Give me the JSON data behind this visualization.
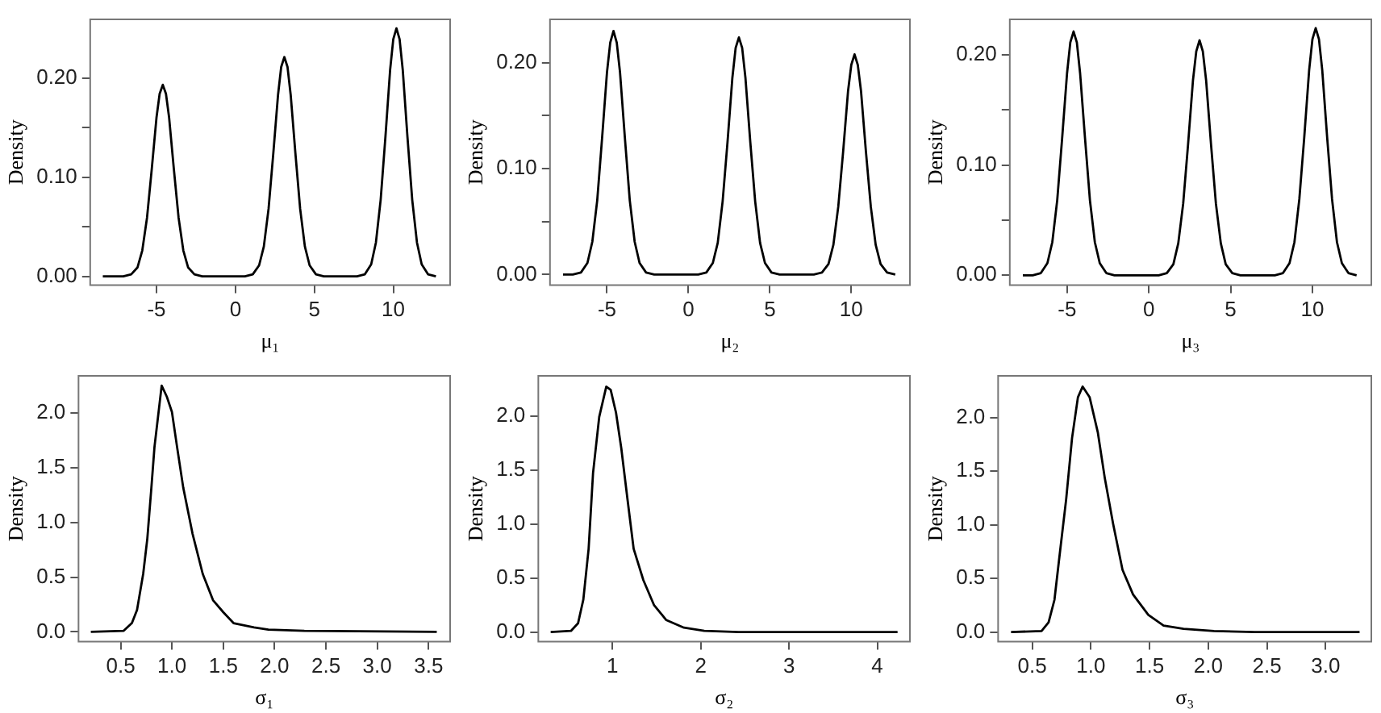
{
  "chart_data": [
    {
      "type": "line",
      "xlabel": "μ₁",
      "ylabel": "Density",
      "xlim": [
        -9.2,
        13.6
      ],
      "ylim": [
        -0.009,
        0.259
      ],
      "xticks": [
        -5,
        0,
        5,
        10
      ],
      "yticks": [
        {
          "value": 0,
          "label": "0.00"
        },
        {
          "value": 0.05,
          "label": null
        },
        {
          "value": 0.1,
          "label": "0.10"
        },
        {
          "value": 0.15,
          "label": null
        },
        {
          "value": 0.2,
          "label": "0.20"
        }
      ],
      "x": [
        -8.4,
        -7.1,
        -6.6,
        -6.2,
        -5.9,
        -5.6,
        -5.3,
        -5.0,
        -4.8,
        -4.6,
        -4.4,
        -4.2,
        -3.9,
        -3.6,
        -3.3,
        -3.0,
        -2.6,
        -2.1,
        0.6,
        1.1,
        1.5,
        1.8,
        2.1,
        2.4,
        2.7,
        2.9,
        3.1,
        3.3,
        3.5,
        3.8,
        4.1,
        4.4,
        4.7,
        5.1,
        5.6,
        7.7,
        8.2,
        8.6,
        8.9,
        9.2,
        9.5,
        9.8,
        10.0,
        10.2,
        10.4,
        10.6,
        10.9,
        11.2,
        11.5,
        11.8,
        12.2,
        12.7
      ],
      "series": [
        {
          "color": "#000000",
          "values": [
            0,
            0,
            0.002,
            0.009,
            0.026,
            0.059,
            0.108,
            0.16,
            0.184,
            0.193,
            0.184,
            0.16,
            0.108,
            0.059,
            0.026,
            0.009,
            0.002,
            0,
            0,
            0.002,
            0.011,
            0.03,
            0.068,
            0.124,
            0.183,
            0.211,
            0.221,
            0.211,
            0.183,
            0.124,
            0.068,
            0.03,
            0.011,
            0.002,
            0,
            0,
            0.002,
            0.012,
            0.034,
            0.077,
            0.14,
            0.208,
            0.239,
            0.25,
            0.239,
            0.208,
            0.14,
            0.077,
            0.034,
            0.012,
            0.002,
            0
          ]
        }
      ]
    },
    {
      "type": "line",
      "xlabel": "μ₂",
      "ylabel": "Density",
      "xlim": [
        -8.5,
        13.6
      ],
      "ylim": [
        -0.01,
        0.241
      ],
      "xticks": [
        -5,
        0,
        5,
        10
      ],
      "yticks": [
        {
          "value": 0,
          "label": "0.00"
        },
        {
          "value": 0.05,
          "label": null
        },
        {
          "value": 0.1,
          "label": "0.10"
        },
        {
          "value": 0.15,
          "label": null
        },
        {
          "value": 0.2,
          "label": "0.20"
        }
      ],
      "x": [
        -7.7,
        -7.1,
        -6.6,
        -6.2,
        -5.9,
        -5.6,
        -5.3,
        -5.0,
        -4.8,
        -4.6,
        -4.4,
        -4.2,
        -3.9,
        -3.6,
        -3.3,
        -3.0,
        -2.6,
        -2.1,
        0.6,
        1.1,
        1.5,
        1.8,
        2.1,
        2.4,
        2.7,
        2.9,
        3.1,
        3.3,
        3.5,
        3.8,
        4.1,
        4.4,
        4.7,
        5.1,
        5.6,
        7.7,
        8.2,
        8.6,
        8.9,
        9.2,
        9.5,
        9.8,
        10.0,
        10.2,
        10.4,
        10.6,
        10.9,
        11.2,
        11.5,
        11.8,
        12.2,
        12.7
      ],
      "series": [
        {
          "color": "#000000",
          "values": [
            0,
            0,
            0.002,
            0.011,
            0.031,
            0.07,
            0.129,
            0.191,
            0.219,
            0.23,
            0.219,
            0.191,
            0.129,
            0.07,
            0.031,
            0.011,
            0.002,
            0,
            0,
            0.002,
            0.011,
            0.03,
            0.069,
            0.125,
            0.186,
            0.214,
            0.224,
            0.214,
            0.186,
            0.125,
            0.069,
            0.03,
            0.011,
            0.002,
            0,
            0,
            0.002,
            0.01,
            0.028,
            0.064,
            0.116,
            0.173,
            0.198,
            0.208,
            0.198,
            0.173,
            0.116,
            0.064,
            0.028,
            0.01,
            0.002,
            0
          ]
        }
      ]
    },
    {
      "type": "line",
      "xlabel": "μ₃",
      "ylabel": "Density",
      "xlim": [
        -8.5,
        13.6
      ],
      "ylim": [
        -0.009,
        0.232
      ],
      "xticks": [
        -5,
        0,
        5,
        10
      ],
      "yticks": [
        {
          "value": 0,
          "label": "0.00"
        },
        {
          "value": 0.05,
          "label": null
        },
        {
          "value": 0.1,
          "label": "0.10"
        },
        {
          "value": 0.15,
          "label": null
        },
        {
          "value": 0.2,
          "label": "0.20"
        }
      ],
      "x": [
        -7.7,
        -7.1,
        -6.6,
        -6.2,
        -5.9,
        -5.6,
        -5.3,
        -5.0,
        -4.8,
        -4.6,
        -4.4,
        -4.2,
        -3.9,
        -3.6,
        -3.3,
        -3.0,
        -2.6,
        -2.1,
        0.6,
        1.1,
        1.5,
        1.8,
        2.1,
        2.4,
        2.7,
        2.9,
        3.1,
        3.3,
        3.5,
        3.8,
        4.1,
        4.4,
        4.7,
        5.1,
        5.6,
        7.7,
        8.2,
        8.6,
        8.9,
        9.2,
        9.5,
        9.8,
        10.0,
        10.2,
        10.4,
        10.6,
        10.9,
        11.2,
        11.5,
        11.8,
        12.2,
        12.7
      ],
      "series": [
        {
          "color": "#000000",
          "values": [
            0,
            0,
            0.002,
            0.011,
            0.03,
            0.068,
            0.124,
            0.183,
            0.211,
            0.221,
            0.211,
            0.183,
            0.124,
            0.068,
            0.03,
            0.011,
            0.002,
            0,
            0,
            0.002,
            0.01,
            0.029,
            0.065,
            0.119,
            0.177,
            0.203,
            0.213,
            0.203,
            0.177,
            0.119,
            0.065,
            0.029,
            0.01,
            0.002,
            0,
            0,
            0.002,
            0.011,
            0.03,
            0.069,
            0.125,
            0.186,
            0.214,
            0.224,
            0.214,
            0.186,
            0.125,
            0.069,
            0.03,
            0.011,
            0.002,
            0
          ]
        }
      ]
    },
    {
      "type": "line",
      "xlabel": "σ₁",
      "ylabel": "Density",
      "xlim": [
        0.09,
        3.71
      ],
      "ylim": [
        -0.09,
        2.34
      ],
      "xticks": [
        {
          "value": 0.5,
          "label": "0.5"
        },
        {
          "value": 1,
          "label": "1.0"
        },
        {
          "value": 1.5,
          "label": "1.5"
        },
        {
          "value": 2,
          "label": "2.0"
        },
        {
          "value": 2.5,
          "label": "2.5"
        },
        {
          "value": 3,
          "label": "3.0"
        },
        {
          "value": 3.5,
          "label": "3.5"
        }
      ],
      "yticks": [
        {
          "value": 0,
          "label": "0.0"
        },
        {
          "value": 0.5,
          "label": "0.5"
        },
        {
          "value": 1,
          "label": "1.0"
        },
        {
          "value": 1.5,
          "label": "1.5"
        },
        {
          "value": 2,
          "label": "2.0"
        }
      ],
      "x": [
        0.21,
        0.53,
        0.61,
        0.66,
        0.72,
        0.76,
        0.8,
        0.83,
        0.87,
        0.9,
        0.95,
        1.0,
        1.05,
        1.11,
        1.2,
        1.3,
        1.4,
        1.5,
        1.6,
        1.8,
        1.94,
        2.29,
        3.58
      ],
      "series": [
        {
          "color": "#000000",
          "values": [
            0,
            0.01,
            0.08,
            0.2,
            0.53,
            0.85,
            1.32,
            1.69,
            2.01,
            2.25,
            2.15,
            2.01,
            1.69,
            1.32,
            0.9,
            0.53,
            0.29,
            0.18,
            0.08,
            0.04,
            0.02,
            0.01,
            0
          ]
        }
      ]
    },
    {
      "type": "line",
      "xlabel": "σ₂",
      "ylabel": "Density",
      "xlim": [
        0.16,
        4.37
      ],
      "ylim": [
        -0.09,
        2.37
      ],
      "xticks": [
        1,
        2,
        3,
        4
      ],
      "yticks": [
        {
          "value": 0,
          "label": "0.0"
        },
        {
          "value": 0.5,
          "label": "0.5"
        },
        {
          "value": 1,
          "label": "1.0"
        },
        {
          "value": 1.5,
          "label": "1.5"
        },
        {
          "value": 2,
          "label": "2.0"
        }
      ],
      "x": [
        0.3,
        0.53,
        0.61,
        0.67,
        0.73,
        0.78,
        0.85,
        0.93,
        0.98,
        1.04,
        1.1,
        1.17,
        1.24,
        1.35,
        1.47,
        1.61,
        1.81,
        2.04,
        2.43,
        4.23
      ],
      "series": [
        {
          "color": "#000000",
          "values": [
            0,
            0.01,
            0.08,
            0.3,
            0.77,
            1.47,
            1.99,
            2.27,
            2.24,
            2.03,
            1.7,
            1.23,
            0.77,
            0.48,
            0.25,
            0.11,
            0.04,
            0.01,
            0,
            0
          ]
        }
      ]
    },
    {
      "type": "line",
      "xlabel": "σ₃",
      "ylabel": "Density",
      "xlim": [
        0.21,
        3.39
      ],
      "ylim": [
        -0.09,
        2.39
      ],
      "xticks": [
        {
          "value": 0.5,
          "label": "0.5"
        },
        {
          "value": 1,
          "label": "1.0"
        },
        {
          "value": 1.5,
          "label": "1.5"
        },
        {
          "value": 2,
          "label": "2.0"
        },
        {
          "value": 2.5,
          "label": "2.5"
        },
        {
          "value": 3,
          "label": "3.0"
        }
      ],
      "yticks": [
        {
          "value": 0,
          "label": "0.0"
        },
        {
          "value": 0.5,
          "label": "0.5"
        },
        {
          "value": 1,
          "label": "1.0"
        },
        {
          "value": 1.5,
          "label": "1.5"
        },
        {
          "value": 2,
          "label": "2.0"
        }
      ],
      "x": [
        0.32,
        0.58,
        0.64,
        0.69,
        0.73,
        0.79,
        0.84,
        0.89,
        0.93,
        0.99,
        1.06,
        1.12,
        1.19,
        1.27,
        1.36,
        1.49,
        1.62,
        1.79,
        2.05,
        2.4,
        3.29
      ],
      "series": [
        {
          "color": "#000000",
          "values": [
            0,
            0.01,
            0.09,
            0.3,
            0.68,
            1.24,
            1.81,
            2.19,
            2.29,
            2.19,
            1.86,
            1.43,
            1.01,
            0.58,
            0.35,
            0.16,
            0.06,
            0.03,
            0.01,
            0,
            0
          ]
        }
      ]
    }
  ]
}
